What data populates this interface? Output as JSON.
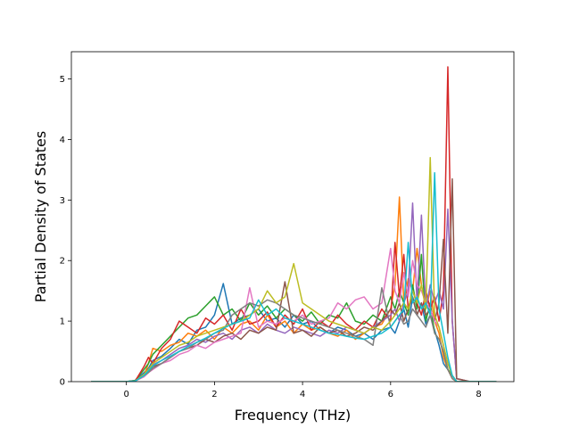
{
  "chart_data": {
    "type": "line",
    "title": "",
    "xlabel": "Frequency (THz)",
    "ylabel": "Partial Density of States",
    "xlim": [
      -1.25,
      8.8
    ],
    "ylim": [
      0,
      5.45
    ],
    "xticks": [
      0,
      2,
      4,
      6,
      8
    ],
    "yticks": [
      0,
      1,
      2,
      3,
      4,
      5
    ],
    "grid": false,
    "legend": "none",
    "palette": [
      "#1f77b4",
      "#ff7f0e",
      "#2ca02c",
      "#d62728",
      "#9467bd",
      "#8c564b",
      "#e377c2",
      "#7f7f7f",
      "#bcbd22",
      "#17becf"
    ],
    "x": [
      -0.8,
      -0.6,
      -0.4,
      -0.2,
      0.0,
      0.2,
      0.4,
      0.5,
      0.6,
      0.8,
      1.0,
      1.2,
      1.4,
      1.6,
      1.8,
      2.0,
      2.2,
      2.4,
      2.6,
      2.8,
      3.0,
      3.2,
      3.4,
      3.6,
      3.8,
      4.0,
      4.2,
      4.4,
      4.6,
      4.8,
      5.0,
      5.2,
      5.4,
      5.6,
      5.8,
      6.0,
      6.1,
      6.2,
      6.3,
      6.4,
      6.5,
      6.6,
      6.7,
      6.8,
      6.9,
      7.0,
      7.1,
      7.2,
      7.3,
      7.4,
      7.5,
      7.8,
      8.1,
      8.4
    ],
    "series": [
      {
        "values": [
          0,
          0,
          0,
          0,
          0,
          0.02,
          0.15,
          0.22,
          0.35,
          0.42,
          0.55,
          0.7,
          0.62,
          0.85,
          0.9,
          1.1,
          1.62,
          0.95,
          1.05,
          1.1,
          1.2,
          1.0,
          1.05,
          0.9,
          1.1,
          0.95,
          1.0,
          0.85,
          0.8,
          0.9,
          0.85,
          0.75,
          0.8,
          0.7,
          0.85,
          0.9,
          0.8,
          1.0,
          1.2,
          0.9,
          1.4,
          1.1,
          1.3,
          0.95,
          1.1,
          0.85,
          0.6,
          0.3,
          0.2,
          0.1,
          0,
          0,
          0,
          0
        ]
      },
      {
        "values": [
          0,
          0,
          0,
          0,
          0,
          0.01,
          0.1,
          0.3,
          0.55,
          0.5,
          0.6,
          0.65,
          0.8,
          0.75,
          0.85,
          0.7,
          0.9,
          0.8,
          0.95,
          1.0,
          0.85,
          1.1,
          0.9,
          1.0,
          0.8,
          0.95,
          0.85,
          0.9,
          0.8,
          0.75,
          0.85,
          0.7,
          0.8,
          0.9,
          0.95,
          1.2,
          1.6,
          3.05,
          1.3,
          1.7,
          1.5,
          2.2,
          1.6,
          1.2,
          1.5,
          1.0,
          0.8,
          0.4,
          0.2,
          0.05,
          0,
          0,
          0,
          0
        ]
      },
      {
        "values": [
          0,
          0,
          0,
          0,
          0,
          0.02,
          0.2,
          0.3,
          0.45,
          0.6,
          0.75,
          0.9,
          1.05,
          1.1,
          1.25,
          1.4,
          1.1,
          1.2,
          1.0,
          1.3,
          1.1,
          1.25,
          1.05,
          1.2,
          1.1,
          1.0,
          1.15,
          0.95,
          1.1,
          1.05,
          1.3,
          1.0,
          0.95,
          1.1,
          1.0,
          1.4,
          1.2,
          1.5,
          1.3,
          1.1,
          1.6,
          1.2,
          2.1,
          1.0,
          1.3,
          0.8,
          0.7,
          0.5,
          0.2,
          0.1,
          0,
          0,
          0,
          0
        ]
      },
      {
        "values": [
          0,
          0,
          0,
          0,
          0,
          0.01,
          0.25,
          0.4,
          0.3,
          0.55,
          0.7,
          1.0,
          0.9,
          0.8,
          1.05,
          0.95,
          1.1,
          0.85,
          1.2,
          0.95,
          1.0,
          1.15,
          0.9,
          1.1,
          0.95,
          1.2,
          0.85,
          1.0,
          0.9,
          1.1,
          0.95,
          0.85,
          1.0,
          0.9,
          1.2,
          1.0,
          2.3,
          1.4,
          2.1,
          1.2,
          1.5,
          1.3,
          1.1,
          1.5,
          1.2,
          1.4,
          1.0,
          1.5,
          5.2,
          1.0,
          0.05,
          0,
          0,
          0
        ]
      },
      {
        "values": [
          0,
          0,
          0,
          0,
          0,
          0.01,
          0.12,
          0.2,
          0.28,
          0.35,
          0.45,
          0.55,
          0.6,
          0.7,
          0.65,
          0.75,
          0.8,
          0.7,
          0.85,
          0.9,
          0.8,
          0.95,
          0.85,
          0.8,
          0.9,
          0.85,
          0.8,
          0.75,
          0.85,
          0.8,
          0.9,
          0.85,
          0.8,
          0.9,
          1.0,
          1.1,
          1.2,
          1.0,
          1.3,
          1.5,
          2.95,
          1.3,
          2.75,
          1.2,
          1.6,
          1.3,
          1.5,
          1.2,
          2.85,
          1.0,
          0.05,
          0,
          0,
          0
        ]
      },
      {
        "values": [
          0,
          0,
          0,
          0,
          0,
          0.01,
          0.1,
          0.18,
          0.25,
          0.3,
          0.4,
          0.5,
          0.55,
          0.6,
          0.7,
          0.65,
          0.75,
          0.8,
          0.7,
          0.85,
          0.8,
          0.9,
          0.85,
          1.65,
          0.8,
          0.85,
          0.75,
          0.9,
          0.8,
          0.85,
          0.75,
          0.8,
          0.9,
          0.85,
          1.0,
          1.2,
          1.1,
          1.3,
          1.0,
          1.2,
          1.4,
          1.1,
          1.3,
          1.1,
          1.2,
          1.0,
          1.3,
          2.35,
          0.8,
          3.35,
          0.05,
          0,
          0,
          0
        ]
      },
      {
        "values": [
          0,
          0,
          0,
          0,
          0,
          0.01,
          0.08,
          0.15,
          0.2,
          0.3,
          0.35,
          0.45,
          0.5,
          0.6,
          0.55,
          0.65,
          0.7,
          0.75,
          0.8,
          1.55,
          0.9,
          1.0,
          0.95,
          1.05,
          1.0,
          1.1,
          0.95,
          1.0,
          1.05,
          1.3,
          1.2,
          1.35,
          1.4,
          1.2,
          1.3,
          2.2,
          1.5,
          1.3,
          1.8,
          1.4,
          2.0,
          1.6,
          1.5,
          1.3,
          1.2,
          1.0,
          0.9,
          0.6,
          0.3,
          0.1,
          0,
          0,
          0,
          0
        ]
      },
      {
        "values": [
          0,
          0,
          0,
          0,
          0,
          0.01,
          0.1,
          0.15,
          0.22,
          0.3,
          0.4,
          0.5,
          0.55,
          0.65,
          0.7,
          0.8,
          0.85,
          1.1,
          1.2,
          1.3,
          1.25,
          1.35,
          1.3,
          1.2,
          1.1,
          1.05,
          1.0,
          0.95,
          0.9,
          0.85,
          0.8,
          0.75,
          0.7,
          0.6,
          1.55,
          0.9,
          1.0,
          1.1,
          0.95,
          1.0,
          1.2,
          1.1,
          1.0,
          0.9,
          1.1,
          0.8,
          0.7,
          0.5,
          0.2,
          0.05,
          0,
          0,
          0,
          0
        ]
      },
      {
        "values": [
          0,
          0,
          0,
          0,
          0,
          0.01,
          0.12,
          0.2,
          0.3,
          0.4,
          0.5,
          0.6,
          0.65,
          0.75,
          0.8,
          0.85,
          0.9,
          0.95,
          1.0,
          1.1,
          1.2,
          1.5,
          1.3,
          1.4,
          1.95,
          1.3,
          1.2,
          1.1,
          1.0,
          0.95,
          0.9,
          0.85,
          0.8,
          0.9,
          0.85,
          1.0,
          1.1,
          1.2,
          1.3,
          1.2,
          1.5,
          1.3,
          1.6,
          1.2,
          3.7,
          1.1,
          0.9,
          0.6,
          0.3,
          0.1,
          0,
          0,
          0,
          0
        ]
      },
      {
        "values": [
          0,
          0,
          0,
          0,
          0,
          0.01,
          0.1,
          0.18,
          0.26,
          0.35,
          0.42,
          0.5,
          0.58,
          0.65,
          0.72,
          0.8,
          0.88,
          0.95,
          1.0,
          1.05,
          1.35,
          1.1,
          1.2,
          1.05,
          1.0,
          0.95,
          0.9,
          0.85,
          0.8,
          0.78,
          0.75,
          0.72,
          0.7,
          0.75,
          0.8,
          0.9,
          1.0,
          1.1,
          1.2,
          2.3,
          1.3,
          1.4,
          1.2,
          1.3,
          1.1,
          3.45,
          1.2,
          0.8,
          0.4,
          0.1,
          0,
          0,
          0,
          0
        ]
      }
    ]
  }
}
